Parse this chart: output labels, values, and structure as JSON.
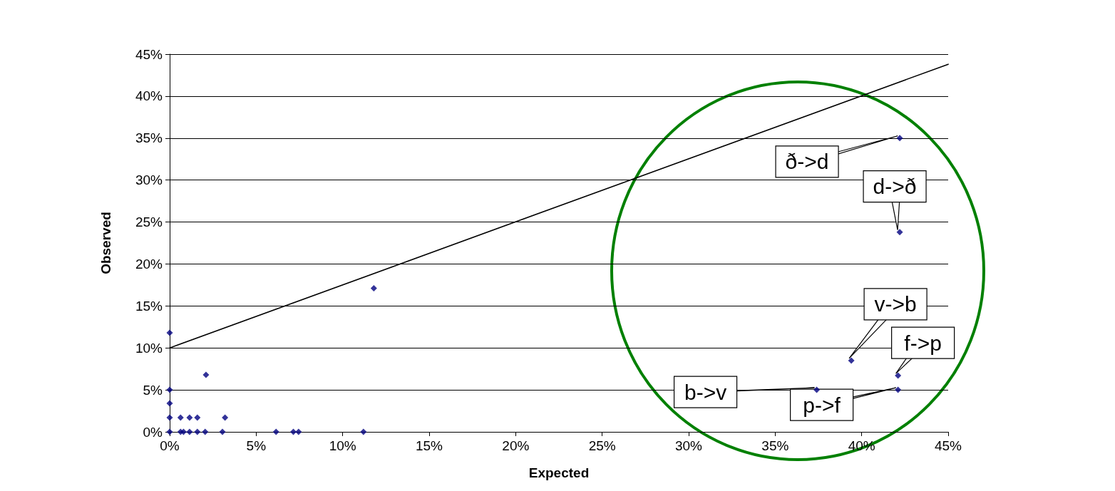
{
  "chart_data": {
    "type": "scatter",
    "xlabel": "Expected",
    "ylabel": "Observed",
    "xlim": [
      0,
      45
    ],
    "ylim": [
      0,
      45
    ],
    "xticks": [
      {
        "value": 0,
        "label": "0%"
      },
      {
        "value": 5,
        "label": "5%"
      },
      {
        "value": 10,
        "label": "10%"
      },
      {
        "value": 15,
        "label": "15%"
      },
      {
        "value": 20,
        "label": "20%"
      },
      {
        "value": 25,
        "label": "25%"
      },
      {
        "value": 30,
        "label": "30%"
      },
      {
        "value": 35,
        "label": "35%"
      },
      {
        "value": 40,
        "label": "40%"
      },
      {
        "value": 45,
        "label": "45%"
      }
    ],
    "yticks": [
      {
        "value": 0,
        "label": "0%"
      },
      {
        "value": 5,
        "label": "5%"
      },
      {
        "value": 10,
        "label": "10%"
      },
      {
        "value": 15,
        "label": "15%"
      },
      {
        "value": 20,
        "label": "20%"
      },
      {
        "value": 25,
        "label": "25%"
      },
      {
        "value": 30,
        "label": "30%"
      },
      {
        "value": 35,
        "label": "35%"
      },
      {
        "value": 40,
        "label": "40%"
      },
      {
        "value": 45,
        "label": "45%"
      }
    ],
    "grid": "y",
    "series": [
      {
        "marker": "diamond",
        "color": "#000080",
        "x": [
          0,
          0,
          0,
          0,
          0,
          0.63,
          1.15,
          1.6,
          3.2,
          0.63,
          0.8,
          1.15,
          1.6,
          2.05,
          3.05,
          6.15,
          7.15,
          7.45,
          11.2,
          2.1,
          11.8,
          37.4,
          39.4,
          42.1,
          42.1,
          42.2,
          42.2
        ],
        "values": [
          11.8,
          5.0,
          3.4,
          1.7,
          0,
          1.7,
          1.7,
          1.7,
          1.7,
          0,
          0,
          0,
          0,
          0,
          0,
          0,
          0,
          0,
          0,
          6.8,
          17.1,
          5.0,
          8.5,
          6.7,
          5.0,
          35.0,
          23.8
        ]
      },
      {
        "type": "line",
        "color": "#000000",
        "line_style": "solid",
        "x": [
          0,
          45
        ],
        "values": [
          10,
          43.8
        ]
      }
    ],
    "annotations": [
      {
        "text": "ð->d",
        "x": 42.2,
        "y": 35.0
      },
      {
        "text": "d->ð",
        "x": 42.2,
        "y": 23.8
      },
      {
        "text": "v->b",
        "x": 39.4,
        "y": 8.5
      },
      {
        "text": "f->p",
        "x": 42.1,
        "y": 6.7
      },
      {
        "text": "b->v",
        "x": 37.4,
        "y": 5.0
      },
      {
        "text": "p->f",
        "x": 42.1,
        "y": 5.0
      }
    ]
  }
}
